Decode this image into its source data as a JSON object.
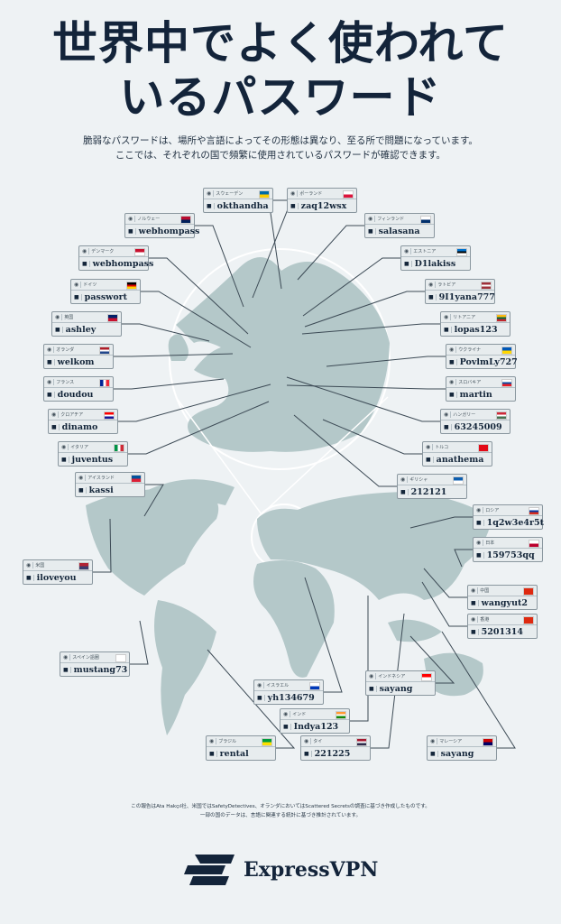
{
  "header": {
    "title_line1": "世界中でよく使われて",
    "title_line2": "いるパスワード",
    "subtitle_line1": "脆弱なパスワードは、場所や言語によってその形態は異なり、至る所で問題になっています。",
    "subtitle_line2": "ここでは、それぞれの国で頻繁に使用されているパスワードが確認できます。"
  },
  "countries": [
    {
      "name": "スウェーデン",
      "password": "okthandha",
      "flag": [
        "#006aa7",
        "#fecc00"
      ]
    },
    {
      "name": "ポーランド",
      "password": "zaq12wsx",
      "flag": [
        "#ffffff",
        "#dc143c"
      ]
    },
    {
      "name": "ノルウェー",
      "password": "webhompass",
      "flag": [
        "#ba0c2f",
        "#00205b"
      ]
    },
    {
      "name": "フィンランド",
      "password": "salasana",
      "flag": [
        "#ffffff",
        "#002f6c"
      ]
    },
    {
      "name": "デンマーク",
      "password": "webhompass",
      "flag": [
        "#c8102e",
        "#ffffff"
      ]
    },
    {
      "name": "エストニア",
      "password": "D1lakiss",
      "flag": [
        "#0072ce",
        "#000000",
        "#ffffff"
      ]
    },
    {
      "name": "ドイツ",
      "password": "passwort",
      "flag": [
        "#000000",
        "#dd0000",
        "#ffce00"
      ]
    },
    {
      "name": "ラトビア",
      "password": "9I1yana777",
      "flag": [
        "#9e3039",
        "#ffffff",
        "#9e3039"
      ]
    },
    {
      "name": "英国",
      "password": "ashley",
      "flag": [
        "#012169",
        "#c8102e"
      ]
    },
    {
      "name": "リトアニア",
      "password": "lopas123",
      "flag": [
        "#fdb913",
        "#006a44",
        "#c1272d"
      ]
    },
    {
      "name": "オランダ",
      "password": "welkom",
      "flag": [
        "#ae1c28",
        "#ffffff",
        "#21468b"
      ]
    },
    {
      "name": "ウクライナ",
      "password": "PovlmLy727",
      "flag": [
        "#0057b7",
        "#ffd700"
      ]
    },
    {
      "name": "フランス",
      "password": "doudou",
      "flag": [
        "#002395",
        "#ffffff",
        "#ed2939"
      ]
    },
    {
      "name": "スロバキア",
      "password": "martin",
      "flag": [
        "#ffffff",
        "#0b4ea2",
        "#ee1c25"
      ]
    },
    {
      "name": "クロアチア",
      "password": "dinamo",
      "flag": [
        "#ff0000",
        "#ffffff",
        "#171796"
      ]
    },
    {
      "name": "ハンガリー",
      "password": "63245009",
      "flag": [
        "#ce2939",
        "#ffffff",
        "#477050"
      ]
    },
    {
      "name": "イタリア",
      "password": "juventus",
      "flag": [
        "#009246",
        "#ffffff",
        "#ce2b37"
      ]
    },
    {
      "name": "トルコ",
      "password": "anathema",
      "flag": [
        "#e30a17",
        "#e30a17"
      ]
    },
    {
      "name": "アイスランド",
      "password": "kassi",
      "flag": [
        "#02529c",
        "#dc1e35"
      ]
    },
    {
      "name": "ギリシャ",
      "password": "212121",
      "flag": [
        "#0d5eaf",
        "#ffffff"
      ]
    },
    {
      "name": "ロシア",
      "password": "1q2w3e4r5t",
      "flag": [
        "#ffffff",
        "#0039a6",
        "#d52b1e"
      ]
    },
    {
      "name": "米国",
      "password": "iloveyou",
      "flag": [
        "#b22234",
        "#3c3b6e"
      ]
    },
    {
      "name": "日本",
      "password": "159753qq",
      "flag": [
        "#ffffff",
        "#bc002d"
      ]
    },
    {
      "name": "中国",
      "password": "wangyut2",
      "flag": [
        "#de2910",
        "#de2910"
      ]
    },
    {
      "name": "香港",
      "password": "5201314",
      "flag": [
        "#de2910",
        "#de2910"
      ]
    },
    {
      "name": "スペイン語圏",
      "password": "mustang73",
      "flag": [
        "#ffffff",
        "#ffffff"
      ]
    },
    {
      "name": "インドネシア",
      "password": "sayang",
      "flag": [
        "#ff0000",
        "#ffffff"
      ]
    },
    {
      "name": "イスラエル",
      "password": "yh134679",
      "flag": [
        "#ffffff",
        "#0038b8"
      ]
    },
    {
      "name": "インド",
      "password": "Indya123",
      "flag": [
        "#ff9933",
        "#ffffff",
        "#138808"
      ]
    },
    {
      "name": "ブラジル",
      "password": "rental",
      "flag": [
        "#009c3b",
        "#ffdf00"
      ]
    },
    {
      "name": "タイ",
      "password": "221225",
      "flag": [
        "#a51931",
        "#f4f5f8",
        "#2d2a4a"
      ]
    },
    {
      "name": "マレーシア",
      "password": "sayang",
      "flag": [
        "#cc0001",
        "#010066"
      ]
    }
  ],
  "icons": {
    "location": "map-pin-icon",
    "password": "lock-icon"
  },
  "footer": {
    "note_line1": "この報告はAta Hakçıl社、米国ではSafetyDetectives、オランダにおいてはScattered Secretsの調査に基づき作成したものです。",
    "note_line2": "一部の国のデータは、言語に関連する統計に基づき推計されています。",
    "brand": "ExpressVPN"
  },
  "colors": {
    "land": "#b4c8c9",
    "background": "#eef2f4",
    "ink": "#13243a"
  }
}
